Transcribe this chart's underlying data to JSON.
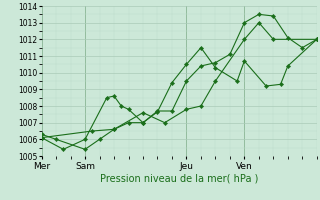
{
  "background_color": "#cce8d8",
  "grid_color_major": "#aacab8",
  "grid_color_minor": "#bbdaca",
  "line_color": "#1a6e1a",
  "marker_color": "#1a6e1a",
  "xlabel": "Pression niveau de la mer( hPa )",
  "xlabel_color": "#1a6e1a",
  "ylim": [
    1005,
    1014
  ],
  "yticks": [
    1005,
    1006,
    1007,
    1008,
    1009,
    1010,
    1011,
    1012,
    1013,
    1014
  ],
  "day_labels": [
    "Mer",
    "Sam",
    "Jeu",
    "Ven"
  ],
  "day_positions": [
    0,
    3,
    10,
    14
  ],
  "xlim": [
    0,
    19
  ],
  "series": [
    [
      0.0,
      1006.3,
      1.0,
      1006.0,
      3.0,
      1005.4,
      4.0,
      1006.0,
      5.0,
      1006.6,
      6.0,
      1007.0,
      7.0,
      1007.0,
      8.0,
      1007.7,
      9.0,
      1007.7,
      10.0,
      1009.5,
      11.0,
      1010.4,
      12.0,
      1010.6,
      13.0,
      1011.1,
      14.0,
      1013.0,
      15.0,
      1013.5,
      16.0,
      1013.4,
      17.0,
      1012.1,
      18.0,
      1011.5,
      19.0,
      1012.0
    ],
    [
      0.0,
      1006.1,
      1.5,
      1005.4,
      3.0,
      1006.0,
      4.5,
      1008.5,
      5.0,
      1008.6,
      5.5,
      1008.0,
      6.0,
      1007.8,
      7.0,
      1007.0,
      8.0,
      1007.65,
      9.0,
      1009.4,
      10.0,
      1010.5,
      11.0,
      1011.5,
      12.0,
      1010.3,
      13.5,
      1009.5,
      14.0,
      1010.7,
      15.5,
      1009.2,
      16.5,
      1009.3,
      17.0,
      1010.4,
      19.0,
      1012.0
    ],
    [
      0.0,
      1006.1,
      3.5,
      1006.5,
      5.0,
      1006.6,
      7.0,
      1007.6,
      8.5,
      1007.0,
      10.0,
      1007.8,
      11.0,
      1008.0,
      12.0,
      1009.5,
      14.0,
      1012.0,
      15.0,
      1013.0,
      16.0,
      1012.0,
      19.0,
      1012.0
    ]
  ]
}
